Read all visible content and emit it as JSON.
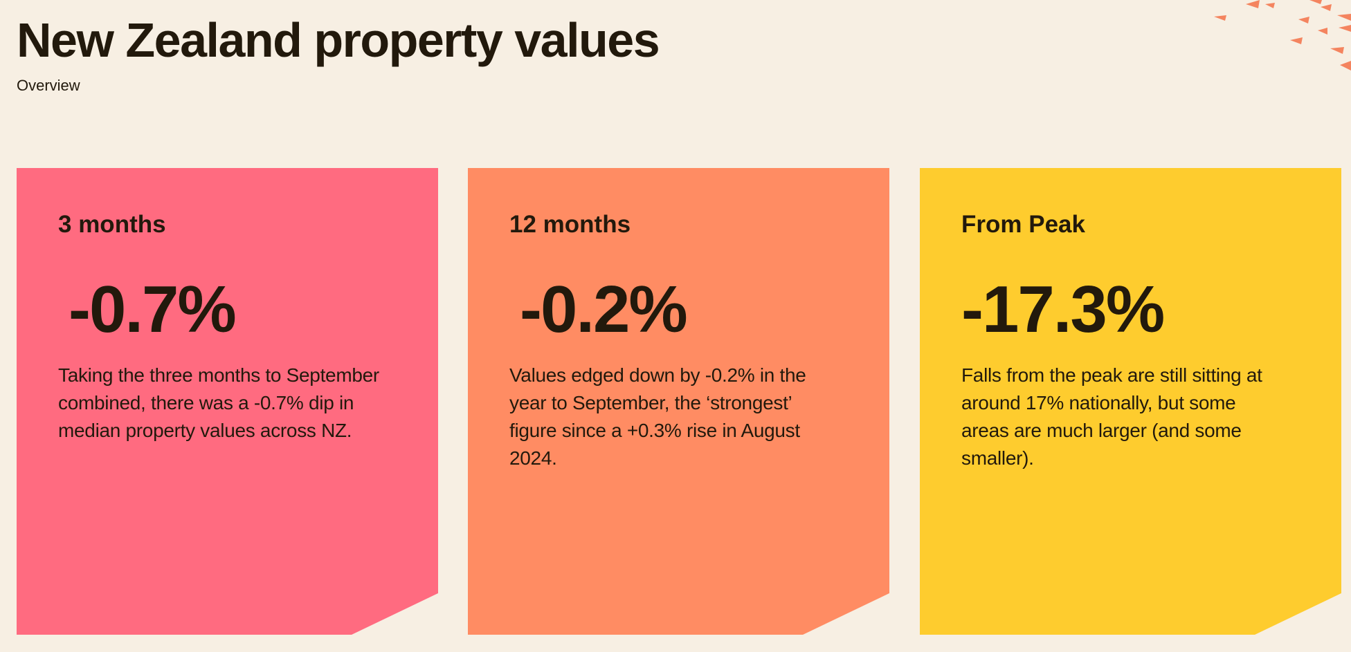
{
  "header": {
    "title": "New Zealand property values",
    "subtitle": "Overview"
  },
  "colors": {
    "background": "#f7efe3",
    "text": "#22190c",
    "decoration": "#f4845f"
  },
  "cards": [
    {
      "heading": "3 months",
      "value": "-0.7%",
      "description": "Taking the three months to September combined, there was a -0.7% dip in median property values across NZ.",
      "color": "#ff6b80"
    },
    {
      "heading": "12 months",
      "value": "-0.2%",
      "description": "Values edged down by -0.2% in the year to September, the ‘strongest’ figure since a +0.3% rise in August 2024.",
      "color": "#ff8c63"
    },
    {
      "heading": "From Peak",
      "value": "-17.3%",
      "description": "Falls from the peak are still sitting at around 17% nationally, but some areas are much larger (and some smaller).",
      "color": "#fecc2e"
    }
  ]
}
